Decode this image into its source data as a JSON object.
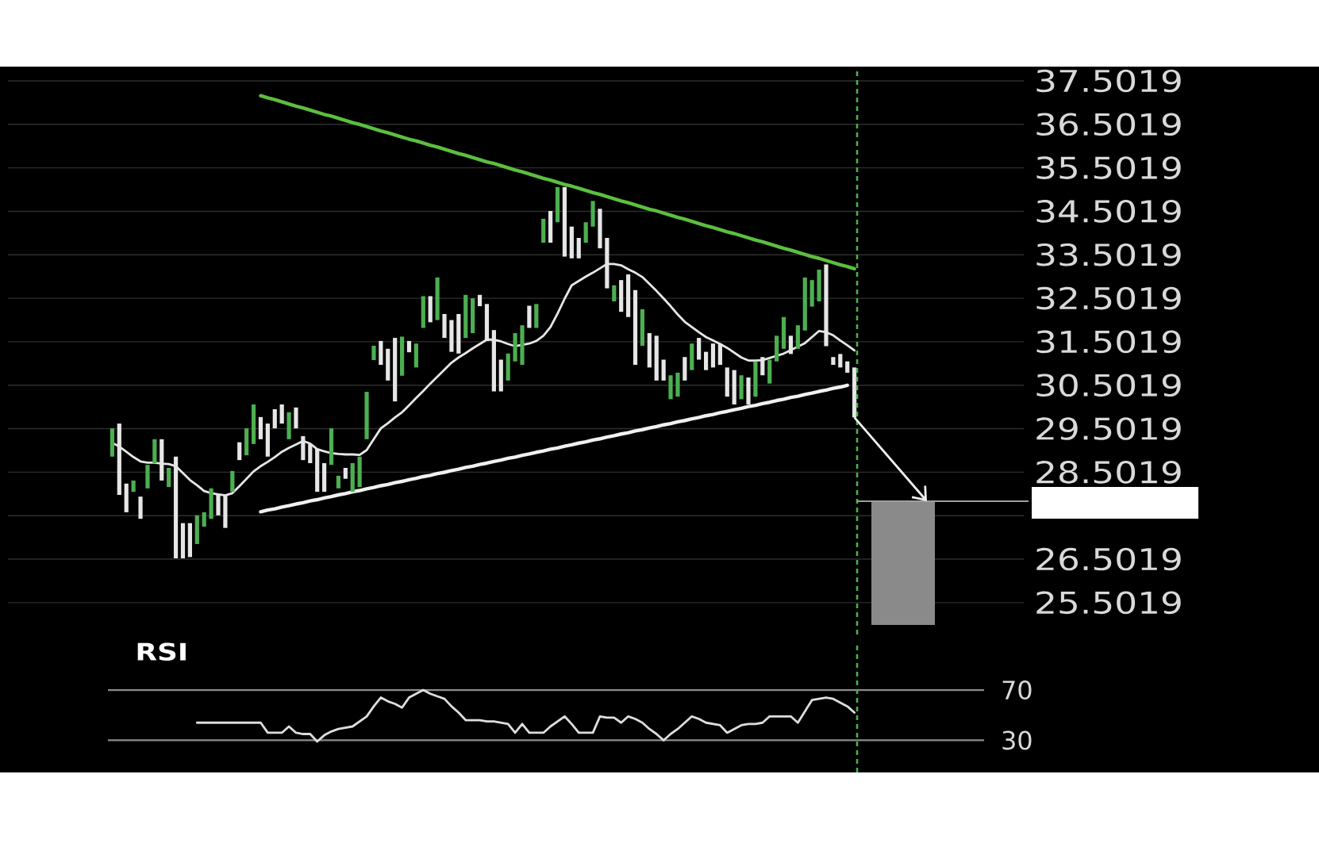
{
  "chart_data": [
    {
      "type": "candlestick",
      "categories": [
        null,
        null,
        null,
        null,
        null,
        null,
        null,
        null,
        null,
        null,
        null,
        null,
        null,
        null,
        null,
        null,
        null,
        null,
        null,
        null,
        null,
        null,
        null,
        null,
        null,
        null,
        null,
        null,
        null,
        null,
        null,
        null,
        null,
        null,
        null,
        null,
        null,
        null,
        null,
        null,
        null,
        null,
        null,
        null,
        null,
        null,
        null,
        null,
        null,
        null,
        null,
        null,
        null,
        null,
        null,
        null,
        null,
        null,
        null,
        null,
        null,
        null,
        null,
        null,
        null,
        null,
        null,
        null,
        null,
        null,
        null,
        null,
        null,
        null,
        null,
        null,
        null,
        null,
        null,
        null,
        null,
        null,
        null,
        null,
        null,
        null,
        null,
        null,
        null,
        null,
        null,
        null,
        null,
        null,
        null,
        null,
        null,
        null,
        null,
        null,
        null,
        null,
        null,
        null,
        null,
        null
      ],
      "ohlc": [
        [
          28.86,
          29.51,
          28.86,
          29.51
        ],
        [
          29.62,
          29.62,
          27.98,
          27.98
        ],
        [
          28.24,
          28.24,
          27.58,
          27.58
        ],
        [
          28.05,
          28.31,
          28.05,
          28.31
        ],
        [
          27.94,
          27.94,
          27.43,
          27.43
        ],
        [
          28.13,
          28.67,
          28.13,
          28.67
        ],
        [
          28.71,
          29.26,
          28.71,
          29.26
        ],
        [
          29.26,
          29.26,
          28.31,
          28.31
        ],
        [
          28.16,
          28.6,
          28.16,
          28.6
        ],
        [
          28.86,
          28.86,
          26.52,
          26.52
        ],
        [
          27.33,
          27.33,
          26.52,
          26.52
        ],
        [
          27.33,
          27.33,
          26.55,
          26.55
        ],
        [
          26.85,
          27.51,
          26.85,
          27.51
        ],
        [
          27.25,
          27.58,
          27.25,
          27.58
        ],
        [
          27.43,
          28.13,
          27.43,
          28.13
        ],
        [
          27.98,
          27.98,
          27.51,
          27.51
        ],
        [
          27.98,
          27.98,
          27.22,
          27.22
        ],
        [
          28.05,
          28.53,
          28.05,
          28.53
        ],
        [
          29.19,
          29.19,
          28.78,
          28.78
        ],
        [
          28.89,
          29.51,
          28.89,
          29.51
        ],
        [
          29.15,
          30.06,
          29.15,
          30.06
        ],
        [
          29.77,
          29.77,
          29.26,
          29.26
        ],
        [
          29.62,
          29.62,
          28.86,
          28.86
        ],
        [
          29.95,
          29.95,
          29.51,
          29.51
        ],
        [
          30.06,
          30.06,
          29.62,
          29.62
        ],
        [
          29.26,
          29.88,
          29.26,
          29.88
        ],
        [
          29.99,
          29.99,
          29.51,
          29.51
        ],
        [
          29.33,
          29.33,
          28.78,
          28.78
        ],
        [
          29.15,
          29.15,
          28.71,
          28.71
        ],
        [
          29.04,
          29.04,
          28.05,
          28.05
        ],
        [
          28.71,
          28.71,
          28.05,
          28.05
        ],
        [
          28.67,
          29.51,
          28.67,
          29.51
        ],
        [
          28.13,
          28.42,
          28.13,
          28.42
        ],
        [
          28.6,
          28.6,
          28.35,
          28.35
        ],
        [
          28.05,
          28.71,
          28.05,
          28.71
        ],
        [
          28.16,
          28.86,
          28.16,
          28.86
        ],
        [
          29.26,
          30.35,
          29.26,
          30.35
        ],
        [
          31.08,
          31.41,
          31.08,
          31.41
        ],
        [
          31.52,
          31.52,
          30.97,
          30.97
        ],
        [
          31.34,
          31.34,
          30.61,
          30.61
        ],
        [
          31.59,
          31.59,
          30.13,
          30.13
        ],
        [
          30.72,
          31.62,
          30.72,
          31.62
        ],
        [
          31.52,
          31.52,
          31.26,
          31.26
        ],
        [
          30.91,
          31.46,
          30.91,
          31.46
        ],
        [
          31.82,
          32.55,
          31.82,
          32.55
        ],
        [
          32.55,
          32.55,
          31.95,
          31.95
        ],
        [
          32.0,
          32.98,
          32.0,
          32.98
        ],
        [
          32.14,
          32.14,
          31.59,
          31.59
        ],
        [
          32.0,
          32.0,
          31.27,
          31.27
        ],
        [
          32.14,
          32.14,
          31.23,
          31.23
        ],
        [
          31.59,
          32.58,
          31.59,
          32.58
        ],
        [
          31.7,
          32.5,
          31.7,
          32.5
        ],
        [
          32.58,
          32.58,
          32.32,
          32.32
        ],
        [
          32.37,
          32.37,
          31.52,
          31.52
        ],
        [
          31.77,
          31.77,
          30.36,
          30.36
        ],
        [
          31.09,
          31.09,
          30.36,
          30.36
        ],
        [
          30.61,
          31.23,
          30.61,
          31.23
        ],
        [
          31.05,
          31.7,
          31.05,
          31.7
        ],
        [
          30.97,
          31.88,
          30.97,
          31.88
        ],
        [
          32.33,
          32.33,
          31.82,
          31.82
        ],
        [
          31.82,
          32.37,
          31.82,
          32.37
        ],
        [
          33.78,
          34.33,
          33.78,
          34.33
        ],
        [
          34.51,
          34.51,
          33.78,
          33.78
        ],
        [
          34.25,
          35.06,
          34.25,
          35.06
        ],
        [
          35.06,
          35.06,
          33.46,
          33.46
        ],
        [
          34.15,
          34.15,
          33.42,
          33.42
        ],
        [
          33.89,
          33.89,
          33.42,
          33.42
        ],
        [
          33.78,
          34.25,
          33.78,
          34.25
        ],
        [
          34.15,
          34.74,
          34.15,
          34.74
        ],
        [
          34.56,
          34.56,
          33.65,
          33.65
        ],
        [
          33.89,
          33.89,
          32.73,
          32.73
        ],
        [
          32.43,
          32.8,
          32.43,
          32.8
        ],
        [
          32.92,
          32.92,
          32.19,
          32.19
        ],
        [
          33.05,
          33.05,
          32.07,
          32.07
        ],
        [
          32.69,
          32.69,
          30.97,
          30.97
        ],
        [
          31.41,
          32.25,
          31.41,
          32.25
        ],
        [
          31.7,
          31.7,
          30.91,
          30.91
        ],
        [
          31.64,
          31.64,
          30.61,
          30.61
        ],
        [
          31.09,
          31.09,
          30.61,
          30.61
        ],
        [
          30.18,
          30.73,
          30.18,
          30.73
        ],
        [
          30.24,
          30.79,
          30.24,
          30.79
        ],
        [
          31.15,
          31.15,
          30.61,
          30.61
        ],
        [
          30.85,
          31.46,
          30.85,
          31.46
        ],
        [
          31.59,
          31.59,
          31.09,
          31.09
        ],
        [
          31.27,
          31.27,
          30.85,
          30.85
        ],
        [
          31.46,
          31.46,
          30.91,
          30.91
        ],
        [
          31.46,
          31.46,
          30.97,
          30.97
        ],
        [
          30.91,
          30.91,
          30.24,
          30.24
        ],
        [
          30.85,
          30.85,
          30.06,
          30.06
        ],
        [
          30.18,
          30.73,
          30.18,
          30.73
        ],
        [
          30.68,
          30.68,
          30.06,
          30.06
        ],
        [
          30.24,
          31.05,
          30.24,
          31.05
        ],
        [
          31.15,
          31.15,
          30.73,
          30.73
        ],
        [
          30.54,
          31.09,
          30.54,
          31.09
        ],
        [
          31.05,
          31.64,
          31.05,
          31.64
        ],
        [
          31.34,
          32.07,
          31.34,
          32.07
        ],
        [
          31.64,
          31.64,
          31.22,
          31.22
        ],
        [
          31.34,
          31.88,
          31.34,
          31.88
        ],
        [
          31.76,
          32.98,
          31.76,
          32.98
        ],
        [
          32.31,
          32.92,
          32.31,
          32.92
        ],
        [
          32.43,
          33.16,
          32.43,
          33.16
        ],
        [
          33.28,
          33.28,
          31.4,
          31.4
        ],
        [
          31.15,
          31.15,
          30.97,
          30.97
        ],
        [
          31.22,
          31.22,
          30.91,
          30.91
        ],
        [
          31.05,
          31.05,
          30.79,
          30.79
        ],
        [
          30.91,
          30.91,
          29.76,
          29.76
        ]
      ],
      "colors": [
        "#4caf50",
        "#e6e6e6",
        "#e6e6e6",
        "#4caf50",
        "#e6e6e6",
        "#4caf50",
        "#4caf50",
        "#e6e6e6",
        "#4caf50",
        "#e6e6e6",
        "#e6e6e6",
        "#e6e6e6",
        "#4caf50",
        "#4caf50",
        "#4caf50",
        "#e6e6e6",
        "#e6e6e6",
        "#4caf50",
        "#e6e6e6",
        "#4caf50",
        "#4caf50",
        "#e6e6e6",
        "#e6e6e6",
        "#e6e6e6",
        "#e6e6e6",
        "#4caf50",
        "#e6e6e6",
        "#e6e6e6",
        "#e6e6e6",
        "#e6e6e6",
        "#e6e6e6",
        "#4caf50",
        "#4caf50",
        "#e6e6e6",
        "#4caf50",
        "#4caf50",
        "#4caf50",
        "#4caf50",
        "#e6e6e6",
        "#e6e6e6",
        "#e6e6e6",
        "#4caf50",
        "#e6e6e6",
        "#4caf50",
        "#4caf50",
        "#e6e6e6",
        "#4caf50",
        "#e6e6e6",
        "#e6e6e6",
        "#e6e6e6",
        "#4caf50",
        "#4caf50",
        "#e6e6e6",
        "#e6e6e6",
        "#e6e6e6",
        "#e6e6e6",
        "#4caf50",
        "#4caf50",
        "#4caf50",
        "#e6e6e6",
        "#4caf50",
        "#4caf50",
        "#e6e6e6",
        "#4caf50",
        "#e6e6e6",
        "#e6e6e6",
        "#e6e6e6",
        "#4caf50",
        "#4caf50",
        "#e6e6e6",
        "#e6e6e6",
        "#4caf50",
        "#e6e6e6",
        "#e6e6e6",
        "#e6e6e6",
        "#4caf50",
        "#e6e6e6",
        "#e6e6e6",
        "#e6e6e6",
        "#4caf50",
        "#4caf50",
        "#e6e6e6",
        "#4caf50",
        "#e6e6e6",
        "#e6e6e6",
        "#e6e6e6",
        "#e6e6e6",
        "#e6e6e6",
        "#e6e6e6",
        "#4caf50",
        "#e6e6e6",
        "#4caf50",
        "#e6e6e6",
        "#4caf50",
        "#4caf50",
        "#4caf50",
        "#e6e6e6",
        "#4caf50",
        "#4caf50",
        "#4caf50",
        "#4caf50",
        "#e6e6e6",
        "#e6e6e6",
        "#e6e6e6",
        "#e6e6e6",
        "#e6e6e6"
      ],
      "series": [
        {
          "type": "line",
          "color": "#e6e6e6",
          "values": [
            29.18,
            29.09,
            28.97,
            28.85,
            28.75,
            28.72,
            28.72,
            28.7,
            28.69,
            28.64,
            28.48,
            28.32,
            28.2,
            28.07,
            28.02,
            27.99,
            27.97,
            28.02,
            28.18,
            28.35,
            28.52,
            28.64,
            28.74,
            28.85,
            28.97,
            29.06,
            29.14,
            29.22,
            29.16,
            29.03,
            28.98,
            28.94,
            28.92,
            28.91,
            28.91,
            28.9,
            29.01,
            29.26,
            29.51,
            29.63,
            29.76,
            29.88,
            30.04,
            30.21,
            30.37,
            30.54,
            30.7,
            30.86,
            31.02,
            31.14,
            31.24,
            31.35,
            31.45,
            31.55,
            31.55,
            31.51,
            31.45,
            31.4,
            31.43,
            31.46,
            31.52,
            31.64,
            31.84,
            32.15,
            32.49,
            32.8,
            32.9,
            33.0,
            33.09,
            33.19,
            33.29,
            33.29,
            33.26,
            33.17,
            33.09,
            32.99,
            32.83,
            32.67,
            32.5,
            32.32,
            32.13,
            31.96,
            31.84,
            31.72,
            31.61,
            31.53,
            31.45,
            31.36,
            31.25,
            31.14,
            31.07,
            31.07,
            31.08,
            31.13,
            31.18,
            31.23,
            31.31,
            31.39,
            31.47,
            31.61,
            31.75,
            31.72,
            31.65,
            31.53,
            31.42,
            31.3
          ]
        },
        {
          "type": "line",
          "color": "#5cbf3f",
          "values": [
            null,
            null,
            null,
            null,
            null,
            null,
            null,
            null,
            null,
            null,
            null,
            null,
            null,
            null,
            null,
            null,
            null,
            null,
            null,
            null,
            null,
            37.16,
            37.11,
            37.07,
            37.02,
            36.97,
            36.92,
            36.88,
            36.83,
            36.78,
            36.73,
            36.69,
            36.64,
            36.59,
            36.54,
            36.5,
            36.45,
            36.4,
            36.35,
            36.31,
            36.26,
            36.21,
            36.16,
            36.12,
            36.07,
            36.02,
            35.98,
            35.93,
            35.88,
            35.83,
            35.79,
            35.74,
            35.69,
            35.64,
            35.6,
            35.55,
            35.5,
            35.45,
            35.41,
            35.36,
            35.31,
            35.26,
            35.22,
            35.17,
            35.12,
            35.08,
            35.03,
            34.98,
            34.93,
            34.89,
            34.84,
            34.79,
            34.74,
            34.7,
            34.65,
            34.6,
            34.55,
            34.51,
            34.46,
            34.41,
            34.36,
            34.32,
            34.27,
            34.22,
            34.17,
            34.13,
            34.08,
            34.03,
            33.99,
            33.94,
            33.89,
            33.84,
            33.8,
            33.75,
            33.7,
            33.65,
            33.61,
            33.56,
            33.51,
            33.46,
            33.42,
            33.37,
            33.32,
            33.27,
            33.23,
            33.18
          ]
        },
        {
          "type": "line",
          "color": "#f0f0f0",
          "values": [
            null,
            null,
            null,
            null,
            null,
            null,
            null,
            null,
            null,
            null,
            null,
            null,
            null,
            null,
            null,
            null,
            null,
            null,
            null,
            null,
            null,
            27.59,
            27.63,
            27.66,
            27.7,
            27.73,
            27.77,
            27.8,
            27.84,
            27.87,
            27.91,
            27.94,
            27.98,
            28.01,
            28.05,
            28.08,
            28.12,
            28.15,
            28.19,
            28.22,
            28.26,
            28.29,
            28.33,
            28.36,
            28.4,
            28.43,
            28.47,
            28.5,
            28.54,
            28.57,
            28.61,
            28.64,
            28.68,
            28.71,
            28.75,
            28.78,
            28.82,
            28.85,
            28.89,
            28.92,
            28.96,
            28.99,
            29.03,
            29.06,
            29.1,
            29.13,
            29.17,
            29.2,
            29.24,
            29.27,
            29.31,
            29.34,
            29.38,
            29.41,
            29.45,
            29.48,
            29.52,
            29.55,
            29.59,
            29.62,
            29.66,
            29.69,
            29.73,
            29.76,
            29.8,
            29.83,
            29.87,
            29.9,
            29.94,
            29.97,
            30.01,
            30.04,
            30.08,
            30.11,
            30.15,
            30.18,
            30.22,
            30.25,
            30.29,
            30.32,
            30.36,
            30.39,
            30.43,
            30.46,
            30.5,
            null
          ]
        }
      ],
      "ylim": [
        24.77,
        37.72
      ],
      "yticks": [
        25.5019,
        26.5019,
        {
          "value": 27.5019,
          "label": null
        },
        28.5019,
        29.5019,
        30.5019,
        31.5019,
        32.5019,
        33.5019,
        34.5019,
        35.5019,
        36.5019,
        37.5019
      ],
      "grid": "y",
      "tick_labels": "y"
    },
    {
      "type": "line",
      "title": "RSI",
      "color": "#dddddd",
      "categories": [
        null,
        null,
        null,
        null,
        null,
        null,
        null,
        null,
        null,
        null,
        null,
        null,
        null,
        null,
        null,
        null,
        null,
        null,
        null,
        null,
        null,
        null,
        null,
        null,
        null,
        null,
        null,
        null,
        null,
        null,
        null,
        null,
        null,
        null,
        null,
        null,
        null,
        null,
        null,
        null,
        null,
        null,
        null,
        null,
        null,
        null,
        null,
        null,
        null,
        null,
        null,
        null,
        null,
        null,
        null,
        null,
        null,
        null,
        null,
        null,
        null,
        null,
        null,
        null,
        null,
        null,
        null,
        null,
        null,
        null,
        null,
        null,
        null,
        null,
        null,
        null,
        null,
        null,
        null,
        null,
        null,
        null,
        null,
        null,
        null,
        null,
        null,
        null,
        null,
        null,
        null,
        null,
        null,
        null,
        null,
        null,
        null,
        null,
        null,
        null,
        null,
        null,
        null,
        null,
        null,
        null
      ],
      "values": [
        null,
        null,
        null,
        null,
        null,
        null,
        null,
        null,
        null,
        null,
        null,
        null,
        44,
        44,
        44,
        44,
        44,
        44,
        44,
        44,
        44,
        44,
        36,
        36,
        36,
        41,
        36,
        35,
        35,
        29,
        34,
        37,
        39,
        40,
        41,
        45,
        49,
        57,
        64,
        61,
        59,
        56,
        64,
        67,
        70,
        67,
        65,
        63,
        57,
        52,
        46,
        46,
        46,
        45,
        45,
        44,
        43,
        36,
        43,
        36,
        36,
        36,
        41,
        45,
        49,
        43,
        36,
        36,
        36,
        49,
        48,
        48,
        44,
        49,
        47,
        44,
        39,
        35,
        30,
        35,
        39,
        44,
        49,
        47,
        44,
        43,
        42,
        36,
        39,
        42,
        43,
        43,
        44,
        49,
        49,
        49,
        49,
        44,
        53,
        62,
        63,
        64,
        63,
        60,
        57,
        52
      ],
      "ylim": [
        4.4,
        107.9
      ],
      "yticks": [
        30,
        70
      ],
      "grid": "y",
      "tick_labels": "y"
    }
  ]
}
